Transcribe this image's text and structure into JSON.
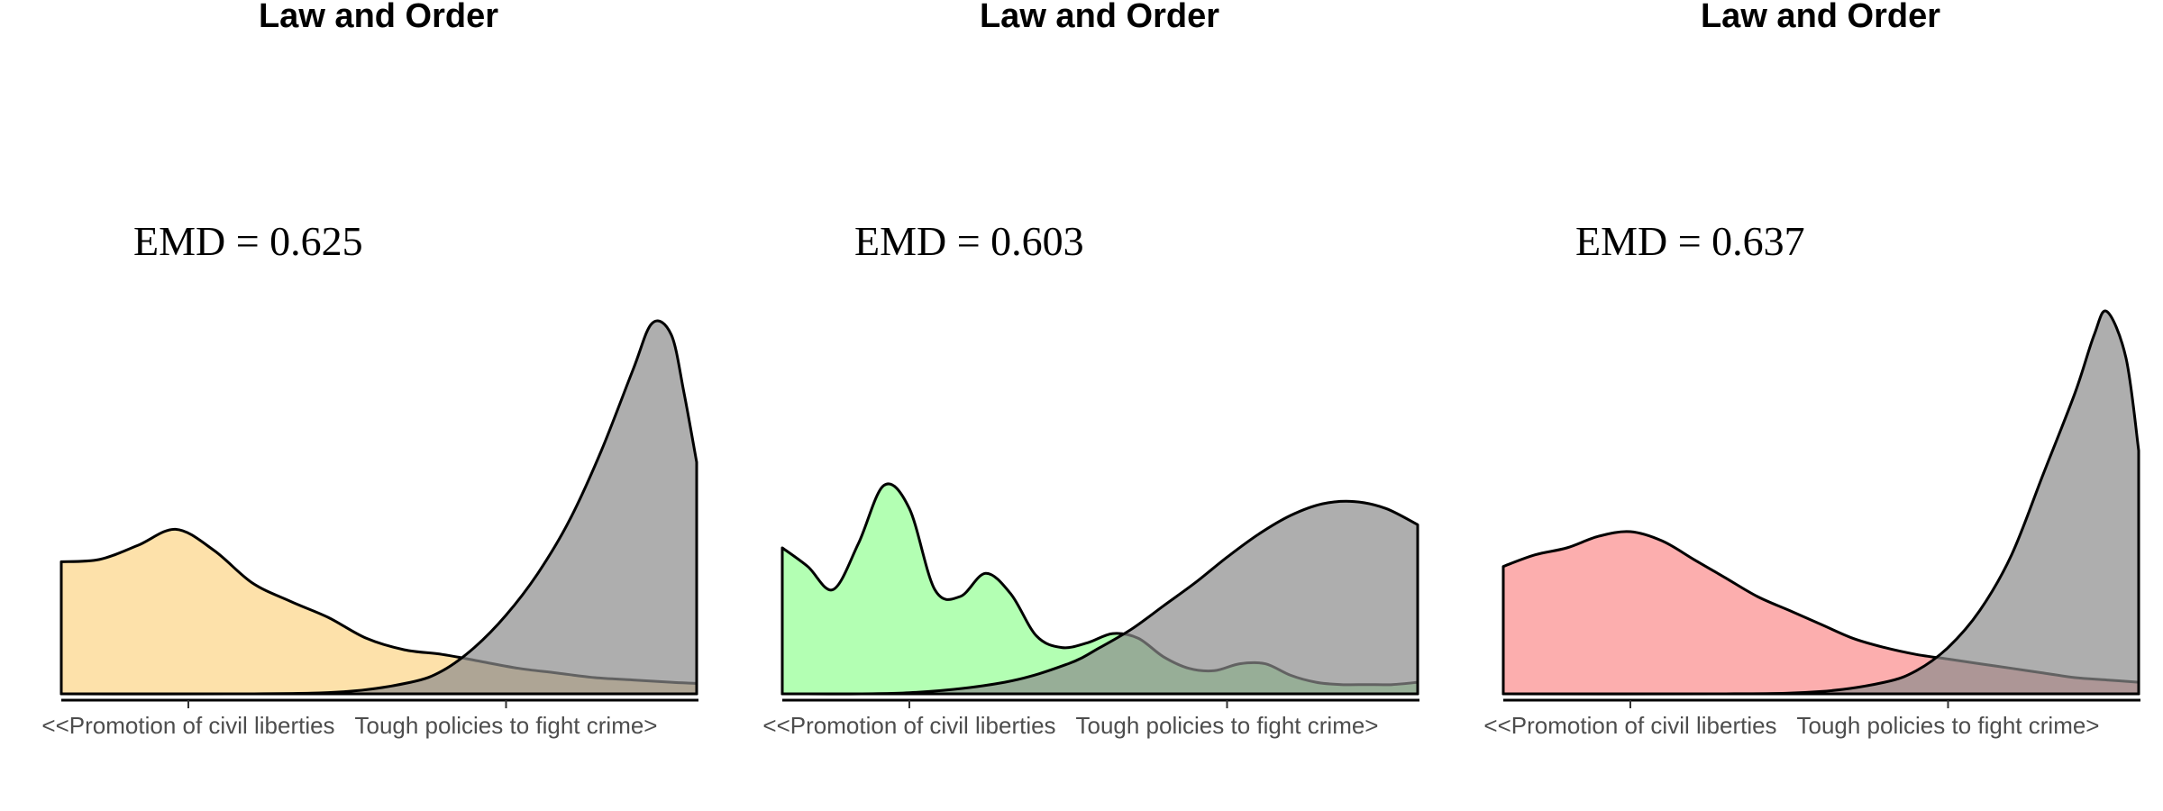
{
  "chart_data": [
    {
      "type": "area",
      "title": "Law and Order",
      "annotation": "EMD = 0.625",
      "x_tick_labels": [
        "<<Promotion of civil liberties",
        "Tough policies to fight crime>"
      ],
      "xlim": [
        0,
        10
      ],
      "x_ticks": [
        2,
        7
      ],
      "series": [
        {
          "color": "#fde1aa",
          "opacity": 1,
          "x": [
            0,
            0.6,
            1.2,
            1.8,
            2.4,
            3.0,
            3.6,
            4.2,
            4.8,
            5.4,
            6.0,
            6.6,
            7.2,
            7.8,
            8.4,
            9.0,
            9.6,
            10
          ],
          "y": [
            0.57,
            0.58,
            0.64,
            0.71,
            0.62,
            0.48,
            0.4,
            0.33,
            0.24,
            0.19,
            0.17,
            0.14,
            0.11,
            0.09,
            0.07,
            0.06,
            0.05,
            0.045
          ]
        },
        {
          "color": "#8c8c8c",
          "opacity": 0.7,
          "x": [
            0,
            3.0,
            4.5,
            5.5,
            6.0,
            6.5,
            7.0,
            7.5,
            8.0,
            8.5,
            9.0,
            9.3,
            9.6,
            9.8,
            10
          ],
          "y": [
            0,
            0,
            0.01,
            0.05,
            0.1,
            0.2,
            0.34,
            0.52,
            0.75,
            1.05,
            1.4,
            1.6,
            1.55,
            1.3,
            1.0
          ]
        }
      ]
    },
    {
      "type": "area",
      "title": "Law and Order",
      "annotation": "EMD = 0.603",
      "x_tick_labels": [
        "<<Promotion of civil liberties",
        "Tough policies to fight crime>"
      ],
      "xlim": [
        0,
        10
      ],
      "x_ticks": [
        2,
        7
      ],
      "series": [
        {
          "color": "#99ff99",
          "opacity": 0.75,
          "x": [
            0,
            0.4,
            0.8,
            1.2,
            1.6,
            2.0,
            2.4,
            2.8,
            3.2,
            3.6,
            4.0,
            4.4,
            4.8,
            5.2,
            5.6,
            6.0,
            6.4,
            6.8,
            7.2,
            7.6,
            8.0,
            8.4,
            8.8,
            9.2,
            9.6,
            10
          ],
          "y": [
            0.63,
            0.55,
            0.45,
            0.65,
            0.9,
            0.8,
            0.45,
            0.42,
            0.52,
            0.43,
            0.25,
            0.2,
            0.22,
            0.26,
            0.24,
            0.16,
            0.11,
            0.1,
            0.13,
            0.13,
            0.08,
            0.05,
            0.04,
            0.04,
            0.04,
            0.05
          ]
        },
        {
          "color": "#8c8c8c",
          "opacity": 0.7,
          "x": [
            0,
            2.0,
            3.5,
            4.5,
            5.0,
            5.5,
            6.0,
            6.5,
            7.0,
            7.5,
            8.0,
            8.5,
            9.0,
            9.5,
            10
          ],
          "y": [
            0,
            0.005,
            0.05,
            0.13,
            0.2,
            0.28,
            0.38,
            0.48,
            0.59,
            0.69,
            0.77,
            0.82,
            0.83,
            0.8,
            0.73
          ]
        }
      ]
    },
    {
      "type": "area",
      "title": "Law and Order",
      "annotation": "EMD = 0.637",
      "x_tick_labels": [
        "<<Promotion of civil liberties",
        "Tough policies to fight crime>"
      ],
      "xlim": [
        0,
        10
      ],
      "x_ticks": [
        2,
        7
      ],
      "series": [
        {
          "color": "#fb9a9a",
          "opacity": 0.8,
          "x": [
            0,
            0.5,
            1.0,
            1.5,
            2.0,
            2.5,
            3.0,
            3.5,
            4.0,
            4.5,
            5.0,
            5.5,
            6.0,
            6.5,
            7.0,
            7.5,
            8.0,
            8.5,
            9.0,
            9.5,
            10
          ],
          "y": [
            0.55,
            0.6,
            0.63,
            0.68,
            0.7,
            0.66,
            0.58,
            0.5,
            0.42,
            0.36,
            0.3,
            0.24,
            0.2,
            0.17,
            0.15,
            0.13,
            0.11,
            0.09,
            0.07,
            0.06,
            0.05
          ]
        },
        {
          "color": "#8c8c8c",
          "opacity": 0.7,
          "x": [
            0,
            3.5,
            5.0,
            6.0,
            6.5,
            7.0,
            7.5,
            8.0,
            8.5,
            9.0,
            9.3,
            9.5,
            9.8,
            10
          ],
          "y": [
            0,
            0,
            0.01,
            0.05,
            0.1,
            0.2,
            0.36,
            0.6,
            0.95,
            1.3,
            1.55,
            1.65,
            1.45,
            1.05
          ]
        }
      ]
    }
  ]
}
